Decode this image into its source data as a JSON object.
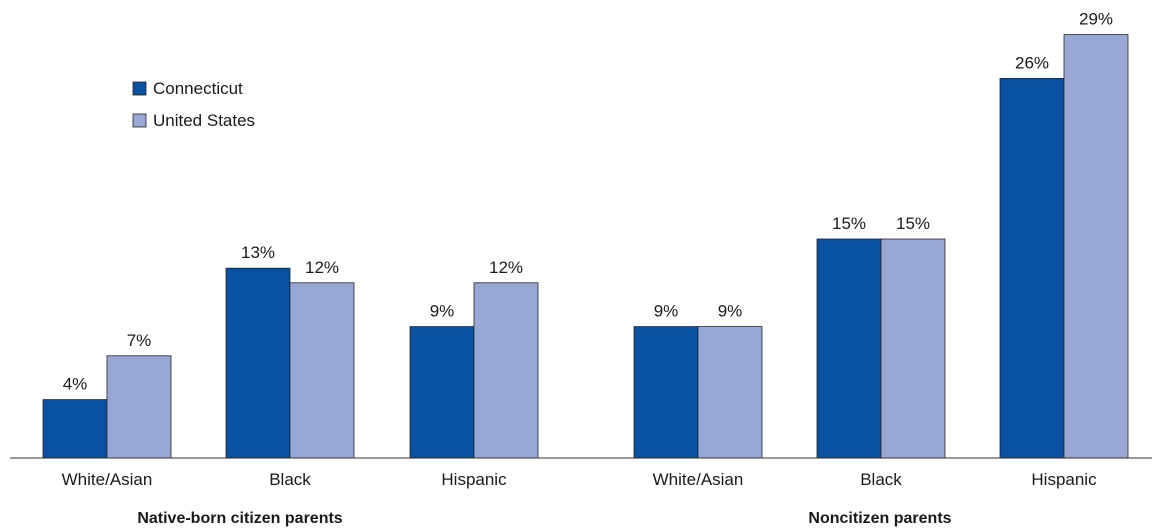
{
  "chart_data": {
    "type": "bar",
    "categories": [
      "White/Asian",
      "Black",
      "Hispanic",
      "White/Asian",
      "Black",
      "Hispanic"
    ],
    "group_labels": [
      "Native-born citizen parents",
      "Noncitizen parents"
    ],
    "series": [
      {
        "name": "Connecticut",
        "color": "#0a51a1",
        "values": [
          4,
          13,
          9,
          9,
          15,
          26
        ],
        "value_labels": [
          "4%",
          "13%",
          "9%",
          "9%",
          "15%",
          "26%"
        ]
      },
      {
        "name": "United States",
        "color": "#99a7d5",
        "values": [
          7,
          12,
          12,
          9,
          15,
          29
        ],
        "value_labels": [
          "7%",
          "12%",
          "12%",
          "9%",
          "15%",
          "29%"
        ]
      }
    ],
    "ylim": [
      0,
      30
    ],
    "legend": "upper left"
  }
}
